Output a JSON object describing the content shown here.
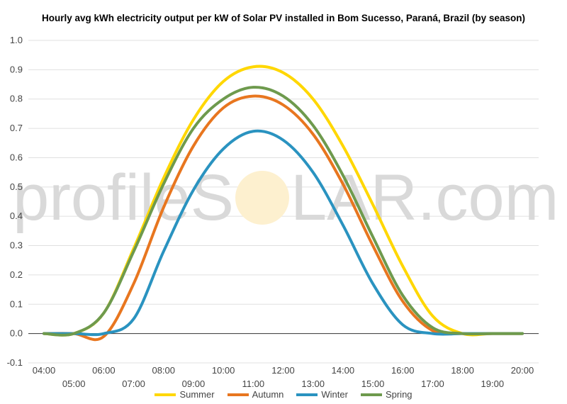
{
  "chart_data": {
    "type": "line",
    "title": "Hourly avg kWh electricity output per kW of Solar PV installed in Bom Sucesso, Paraná, Brazil (by season)",
    "xlabel": "",
    "ylabel": "",
    "x": [
      "04:00",
      "05:00",
      "06:00",
      "07:00",
      "08:00",
      "09:00",
      "10:00",
      "11:00",
      "12:00",
      "13:00",
      "14:00",
      "15:00",
      "16:00",
      "17:00",
      "18:00",
      "19:00",
      "20:00"
    ],
    "ylim": [
      -0.1,
      1.0
    ],
    "yticks": [
      "-0.1",
      "0.0",
      "0.1",
      "0.2",
      "0.3",
      "0.4",
      "0.5",
      "0.6",
      "0.7",
      "0.8",
      "0.9",
      "1.0"
    ],
    "grid": true,
    "legend_position": "bottom",
    "series": [
      {
        "name": "Summer",
        "color": "#ffd700",
        "values": [
          0.0,
          0.0,
          0.07,
          0.29,
          0.53,
          0.73,
          0.86,
          0.91,
          0.89,
          0.8,
          0.64,
          0.44,
          0.23,
          0.06,
          0.0,
          0.0,
          0.0
        ]
      },
      {
        "name": "Autumn",
        "color": "#e8761f",
        "values": [
          0.0,
          0.0,
          -0.01,
          0.17,
          0.43,
          0.64,
          0.77,
          0.81,
          0.78,
          0.68,
          0.51,
          0.3,
          0.11,
          0.01,
          0.0,
          0.0,
          0.0
        ]
      },
      {
        "name": "Winter",
        "color": "#2a93c0",
        "values": [
          0.0,
          0.0,
          0.0,
          0.05,
          0.28,
          0.49,
          0.63,
          0.69,
          0.66,
          0.55,
          0.37,
          0.17,
          0.03,
          0.0,
          0.0,
          0.0,
          0.0
        ]
      },
      {
        "name": "Spring",
        "color": "#6e9a4d",
        "values": [
          0.0,
          0.0,
          0.07,
          0.28,
          0.51,
          0.7,
          0.8,
          0.84,
          0.81,
          0.71,
          0.54,
          0.33,
          0.13,
          0.02,
          0.0,
          0.0,
          0.0
        ]
      }
    ]
  },
  "watermark": {
    "text_left": "profileS",
    "text_right": "LAR.com",
    "sun_color": "#fdf0cf"
  }
}
